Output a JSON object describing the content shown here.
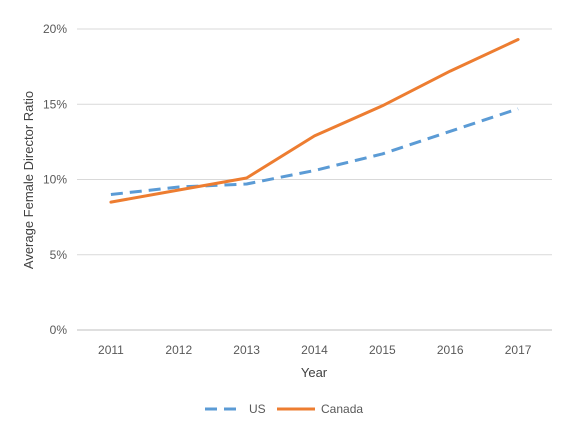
{
  "chart_data": {
    "type": "line",
    "title": "",
    "xlabel": "Year",
    "ylabel": "Average Female Director Ratio",
    "x": [
      "2011",
      "2012",
      "2013",
      "2014",
      "2015",
      "2016",
      "2017"
    ],
    "ylim": [
      0,
      20
    ],
    "yticks": [
      0,
      5,
      10,
      15,
      20
    ],
    "ytick_labels": [
      "0%",
      "5%",
      "10%",
      "15%",
      "20%"
    ],
    "grid": "horizontal",
    "legend_position": "bottom",
    "series": [
      {
        "name": "US",
        "values": [
          9.0,
          9.5,
          9.7,
          10.6,
          11.7,
          13.2,
          14.7
        ],
        "color": "#5B9BD5",
        "style": "dashed"
      },
      {
        "name": "Canada",
        "values": [
          8.5,
          9.3,
          10.1,
          12.9,
          14.9,
          17.2,
          19.3
        ],
        "color": "#ED7D31",
        "style": "solid"
      }
    ]
  }
}
